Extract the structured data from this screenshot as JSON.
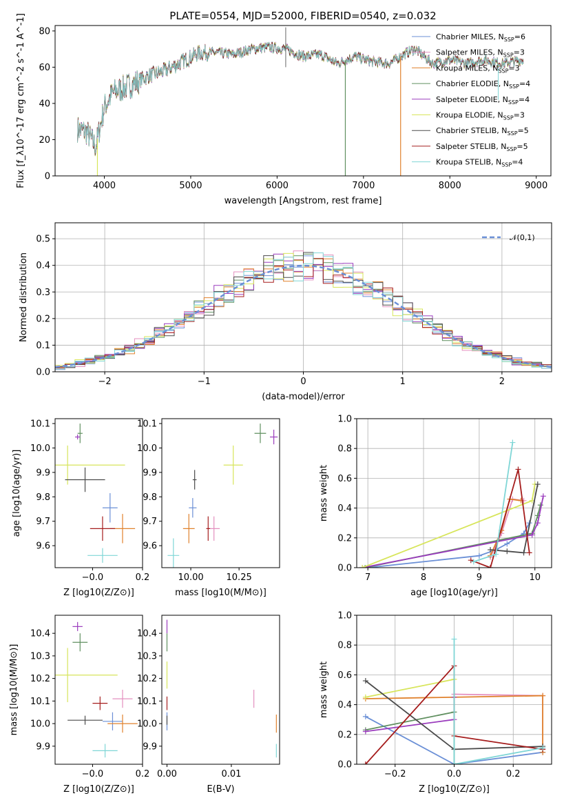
{
  "title": "PLATE=0554, MJD=52000, FIBERID=0540, z=0.032",
  "colors": [
    "#6a8fd6",
    "#e48fbf",
    "#e0812c",
    "#5f8f5f",
    "#9a3bbd",
    "#d7e55a",
    "#4a4a4a",
    "#a51c1c",
    "#7fd6d6"
  ],
  "chart_data": [
    {
      "id": "spectrum",
      "type": "line",
      "title": "PLATE=0554, MJD=52000, FIBERID=0540, z=0.032",
      "xlabel": "wavelength [Angstrom, rest frame]",
      "ylabel": "Flux [f_λ10^-17 erg cm^-2 s^-1 A^-1]",
      "xlim": [
        3430,
        9170
      ],
      "ylim": [
        0,
        83
      ],
      "xticks": [
        4000,
        5000,
        6000,
        7000,
        8000,
        9000
      ],
      "yticks": [
        0,
        20,
        40,
        60,
        80
      ],
      "legend_position": "top-right",
      "legend": [
        "Chabrier MILES, N_SSP=6",
        "Salpeter MILES, N_SSP=3",
        "Kroupa MILES, N_SSP=3",
        "Chabrier ELODIE, N_SSP=4",
        "Salpeter ELODIE, N_SSP=4",
        "Kroupa ELODIE, N_SSP=3",
        "Chabrier STELIB, N_SSP=5",
        "Salpeter STELIB, N_SSP=5",
        "Kroupa STELIB, N_SSP=4"
      ],
      "continuum": [
        [
          3690,
          26
        ],
        [
          3800,
          24
        ],
        [
          3900,
          16
        ],
        [
          4000,
          38
        ],
        [
          4100,
          46
        ],
        [
          4300,
          50
        ],
        [
          4500,
          55
        ],
        [
          4700,
          58
        ],
        [
          4900,
          63
        ],
        [
          5100,
          68
        ],
        [
          5300,
          68
        ],
        [
          5500,
          67
        ],
        [
          5700,
          70
        ],
        [
          5900,
          71
        ],
        [
          6100,
          70
        ],
        [
          6300,
          66
        ],
        [
          6500,
          67
        ],
        [
          6700,
          62
        ],
        [
          6900,
          66
        ],
        [
          7100,
          63
        ],
        [
          7300,
          62
        ],
        [
          7500,
          68
        ],
        [
          7600,
          70
        ],
        [
          7800,
          62
        ],
        [
          8000,
          64
        ],
        [
          8200,
          62
        ],
        [
          8400,
          64
        ],
        [
          8600,
          62
        ],
        [
          8850,
          64
        ]
      ],
      "drops": [
        {
          "x": 3920,
          "y": 0
        },
        {
          "x": 6790,
          "y": 0
        },
        {
          "x": 7430,
          "y": 0
        }
      ]
    },
    {
      "id": "residuals",
      "type": "histogram",
      "xlabel": "(data-model)/error",
      "ylabel": "Normed distribution",
      "xlim": [
        -2.5,
        2.5
      ],
      "ylim": [
        0,
        0.56
      ],
      "xticks": [
        -2,
        -1,
        0,
        1,
        2
      ],
      "yticks": [
        0.0,
        0.1,
        0.2,
        0.3,
        0.4,
        0.5
      ],
      "grid": true,
      "legend_position": "top-right",
      "legend": [
        "𝒩(0,1)"
      ],
      "bin_width": 0.1
    },
    {
      "id": "age_vs_z",
      "type": "scatter",
      "xlabel": "Z [log10(Z/Z⊙)]",
      "ylabel": "age [log10(age/yr)]",
      "xlim": [
        -0.15,
        0.2
      ],
      "ylim": [
        9.51,
        10.12
      ],
      "xticks": [
        -0.0,
        0.2
      ],
      "yticks": [
        9.6,
        9.7,
        9.8,
        9.9,
        10.0,
        10.1
      ],
      "points": [
        {
          "s": 0,
          "x": 0.07,
          "xe": 0.03,
          "y": 9.755,
          "ye": 0.06
        },
        {
          "s": 2,
          "x": 0.12,
          "xe": 0.05,
          "y": 9.67,
          "ye": 0.06
        },
        {
          "s": 3,
          "x": -0.05,
          "xe": 0.01,
          "y": 10.06,
          "ye": 0.04
        },
        {
          "s": 4,
          "x": -0.06,
          "xe": 0.01,
          "y": 10.045,
          "ye": 0.01
        },
        {
          "s": 5,
          "x": -0.1,
          "xe": 0.23,
          "y": 9.93,
          "ye": 0.08
        },
        {
          "s": 6,
          "x": -0.03,
          "xe": 0.08,
          "y": 9.87,
          "ye": 0.05
        },
        {
          "s": 7,
          "x": 0.04,
          "xe": 0.05,
          "y": 9.67,
          "ye": 0.05
        },
        {
          "s": 8,
          "x": 0.04,
          "xe": 0.06,
          "y": 9.56,
          "ye": 0.03
        }
      ]
    },
    {
      "id": "age_vs_mass",
      "type": "scatter",
      "xlabel": "mass [log10(M/M⊙)]",
      "ylabel": "",
      "xlim": [
        9.85,
        10.46
      ],
      "ylim": [
        9.51,
        10.12
      ],
      "xticks": [
        10.0,
        10.25
      ],
      "yticks": [
        9.6,
        9.7,
        9.8,
        9.9,
        10.0,
        10.1
      ],
      "points": [
        {
          "s": 0,
          "x": 10.01,
          "xe": 0.02,
          "y": 9.755,
          "ye": 0.04
        },
        {
          "s": 1,
          "x": 10.12,
          "xe": 0.03,
          "y": 9.67,
          "ye": 0.05
        },
        {
          "s": 2,
          "x": 9.99,
          "xe": 0.03,
          "y": 9.67,
          "ye": 0.06
        },
        {
          "s": 3,
          "x": 10.36,
          "xe": 0.03,
          "y": 10.06,
          "ye": 0.04
        },
        {
          "s": 4,
          "x": 10.43,
          "xe": 0.02,
          "y": 10.045,
          "ye": 0.03
        },
        {
          "s": 5,
          "x": 10.22,
          "xe": 0.05,
          "y": 9.93,
          "ye": 0.08
        },
        {
          "s": 6,
          "x": 10.02,
          "xe": 0.01,
          "y": 9.87,
          "ye": 0.04
        },
        {
          "s": 7,
          "x": 10.09,
          "xe": 0.01,
          "y": 9.67,
          "ye": 0.05
        },
        {
          "s": 8,
          "x": 9.91,
          "xe": 0.03,
          "y": 9.56,
          "ye": 0.07
        }
      ]
    },
    {
      "id": "mw_vs_age",
      "type": "line",
      "xlabel": "age [log10(age/yr)]",
      "ylabel": "mass weight",
      "xlim": [
        6.8,
        10.3
      ],
      "ylim": [
        0,
        1
      ],
      "xticks": [
        7,
        8,
        9,
        10
      ],
      "yticks": [
        0.0,
        0.2,
        0.4,
        0.6,
        0.8,
        1.0
      ],
      "grid": true,
      "series": [
        {
          "s": 0,
          "points": [
            [
              7.0,
              0.0
            ],
            [
              9.0,
              0.08
            ],
            [
              9.3,
              0.12
            ],
            [
              9.5,
              0.16
            ],
            [
              9.8,
              0.23
            ],
            [
              9.9,
              0.3
            ]
          ]
        },
        {
          "s": 1,
          "points": [
            [
              9.2,
              0.07
            ],
            [
              9.4,
              0.23
            ],
            [
              9.6,
              0.46
            ],
            [
              9.8,
              0.45
            ]
          ]
        },
        {
          "s": 2,
          "points": [
            [
              9.2,
              0.08
            ],
            [
              9.4,
              0.25
            ],
            [
              9.55,
              0.46
            ],
            [
              9.75,
              0.45
            ]
          ]
        },
        {
          "s": 3,
          "points": [
            [
              6.95,
              0.0
            ],
            [
              9.95,
              0.23
            ],
            [
              10.05,
              0.35
            ],
            [
              10.1,
              0.42
            ]
          ]
        },
        {
          "s": 4,
          "points": [
            [
              6.9,
              0.0
            ],
            [
              9.95,
              0.22
            ],
            [
              10.05,
              0.3
            ],
            [
              10.15,
              0.48
            ]
          ]
        },
        {
          "s": 5,
          "points": [
            [
              6.9,
              0.0
            ],
            [
              9.95,
              0.45
            ],
            [
              10.0,
              0.56
            ]
          ]
        },
        {
          "s": 6,
          "points": [
            [
              9.2,
              0.12
            ],
            [
              9.5,
              0.11
            ],
            [
              9.8,
              0.1
            ],
            [
              10.05,
              0.56
            ]
          ]
        },
        {
          "s": 7,
          "points": [
            [
              8.85,
              0.05
            ],
            [
              9.2,
              0.0
            ],
            [
              9.7,
              0.66
            ],
            [
              9.9,
              0.1
            ]
          ]
        },
        {
          "s": 8,
          "points": [
            [
              8.9,
              0.04
            ],
            [
              9.3,
              0.09
            ],
            [
              9.6,
              0.84
            ]
          ]
        }
      ]
    },
    {
      "id": "mass_vs_z",
      "type": "scatter",
      "xlabel": "Z [log10(Z/Z⊙)]",
      "ylabel": "mass [log10(M/M⊙)]",
      "xlim": [
        -0.15,
        0.2
      ],
      "ylim": [
        9.82,
        10.48
      ],
      "xticks": [
        -0.0,
        0.2
      ],
      "yticks": [
        9.9,
        10.0,
        10.1,
        10.2,
        10.3,
        10.4
      ],
      "points": [
        {
          "s": 0,
          "x": 0.08,
          "xe": 0.04,
          "y": 10.01,
          "ye": 0.04
        },
        {
          "s": 1,
          "x": 0.12,
          "xe": 0.04,
          "y": 10.11,
          "ye": 0.04
        },
        {
          "s": 2,
          "x": 0.12,
          "xe": 0.06,
          "y": 10.0,
          "ye": 0.04
        },
        {
          "s": 3,
          "x": -0.05,
          "xe": 0.03,
          "y": 10.36,
          "ye": 0.04
        },
        {
          "s": 4,
          "x": -0.06,
          "xe": 0.02,
          "y": 10.43,
          "ye": 0.02
        },
        {
          "s": 5,
          "x": -0.1,
          "xe": 0.2,
          "y": 10.215,
          "ye": 0.12
        },
        {
          "s": 6,
          "x": -0.03,
          "xe": 0.07,
          "y": 10.015,
          "ye": 0.02
        },
        {
          "s": 7,
          "x": 0.03,
          "xe": 0.03,
          "y": 10.09,
          "ye": 0.03
        },
        {
          "s": 8,
          "x": 0.05,
          "xe": 0.05,
          "y": 9.88,
          "ye": 0.03
        }
      ]
    },
    {
      "id": "mass_vs_ebv",
      "type": "scatter",
      "xlabel": "E(B-V)",
      "ylabel": "",
      "xlim": [
        -0.0008,
        0.0175
      ],
      "ylim": [
        9.82,
        10.48
      ],
      "xticks": [
        0.0,
        0.01
      ],
      "yticks": [
        9.9,
        10.0,
        10.1,
        10.2,
        10.3,
        10.4
      ],
      "points": [
        {
          "s": 0,
          "x": 0.0,
          "xe": 0.0,
          "y": 10.01,
          "ye": 0.04
        },
        {
          "s": 1,
          "x": 0.0135,
          "xe": 0.0,
          "y": 10.11,
          "ye": 0.04
        },
        {
          "s": 2,
          "x": 0.017,
          "xe": 0.0,
          "y": 10.0,
          "ye": 0.04
        },
        {
          "s": 3,
          "x": 0.0,
          "xe": 0.0,
          "y": 10.36,
          "ye": 0.04
        },
        {
          "s": 4,
          "x": 0.0,
          "xe": 0.0,
          "y": 10.43,
          "ye": 0.03
        },
        {
          "s": 5,
          "x": 0.0,
          "xe": 0.0,
          "y": 10.215,
          "ye": 0.06
        },
        {
          "s": 6,
          "x": 0.0,
          "xe": 0.0,
          "y": 10.015,
          "ye": 0.02
        },
        {
          "s": 7,
          "x": 0.0,
          "xe": 0.0,
          "y": 10.09,
          "ye": 0.03
        },
        {
          "s": 8,
          "x": 0.017,
          "xe": 0.0,
          "y": 9.88,
          "ye": 0.03
        }
      ]
    },
    {
      "id": "mw_vs_z",
      "type": "line",
      "xlabel": "Z [log10(Z/Z⊙)]",
      "ylabel": "mass weight",
      "xlim": [
        -0.33,
        0.33
      ],
      "ylim": [
        0,
        1
      ],
      "xticks": [
        -0.2,
        0.0,
        0.2
      ],
      "yticks": [
        0.0,
        0.2,
        0.4,
        0.6,
        0.8,
        1.0
      ],
      "grid": true,
      "series": [
        {
          "s": 0,
          "points": [
            [
              -0.3,
              0.32
            ],
            [
              0.0,
              0.0
            ],
            [
              0.3,
              0.08
            ]
          ]
        },
        {
          "s": 1,
          "points": [
            [
              0.0,
              0.47
            ],
            [
              0.3,
              0.46
            ],
            [
              0.3,
              0.1
            ]
          ]
        },
        {
          "s": 2,
          "points": [
            [
              -0.3,
              0.44
            ],
            [
              0.3,
              0.46
            ],
            [
              0.3,
              0.08
            ]
          ]
        },
        {
          "s": 3,
          "points": [
            [
              -0.3,
              0.23
            ],
            [
              0.0,
              0.35
            ],
            [
              0.0,
              0.0
            ]
          ]
        },
        {
          "s": 4,
          "points": [
            [
              -0.3,
              0.22
            ],
            [
              0.0,
              0.3
            ],
            [
              0.0,
              0.45
            ]
          ]
        },
        {
          "s": 5,
          "points": [
            [
              -0.3,
              0.45
            ],
            [
              0.0,
              0.57
            ]
          ]
        },
        {
          "s": 6,
          "points": [
            [
              -0.3,
              0.56
            ],
            [
              0.0,
              0.1
            ],
            [
              0.3,
              0.12
            ]
          ]
        },
        {
          "s": 7,
          "points": [
            [
              -0.3,
              0.0
            ],
            [
              0.0,
              0.66
            ],
            [
              0.0,
              0.19
            ],
            [
              0.3,
              0.1
            ]
          ]
        },
        {
          "s": 8,
          "points": [
            [
              0.0,
              0.84
            ],
            [
              0.0,
              0.0
            ],
            [
              0.3,
              0.11
            ]
          ]
        }
      ]
    }
  ]
}
